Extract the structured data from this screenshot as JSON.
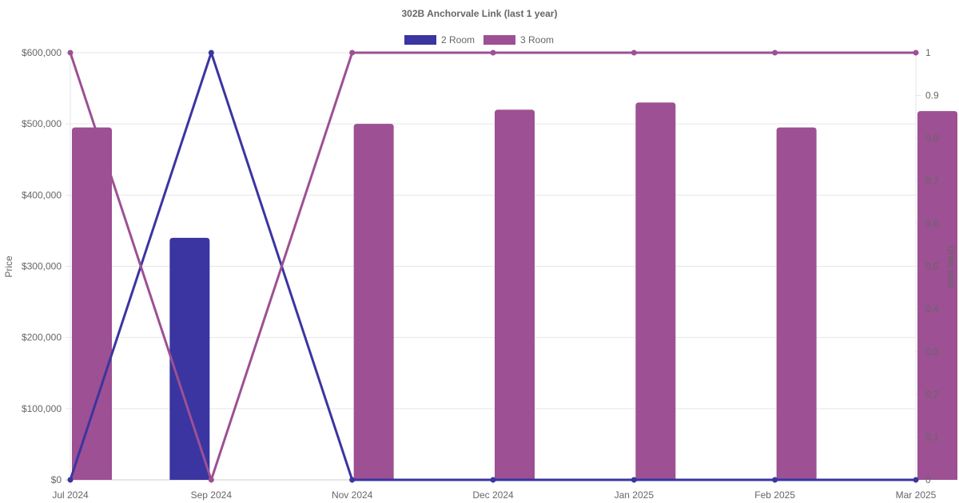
{
  "chart_data": {
    "type": "bar",
    "title": "302B Anchorvale Link (last 1 year)",
    "categories": [
      "Jul 2024",
      "Sep 2024",
      "Nov 2024",
      "Dec 2024",
      "Jan 2025",
      "Feb 2025",
      "Mar 2025"
    ],
    "y_left": {
      "label": "Price",
      "range": [
        0,
        600000
      ],
      "ticks": [
        "$0",
        "$100,000",
        "$200,000",
        "$300,000",
        "$400,000",
        "$500,000",
        "$600,000"
      ]
    },
    "y_right": {
      "label": "Units sold",
      "range": [
        0,
        1
      ],
      "ticks": [
        "0",
        "0.1",
        "0.2",
        "0.3",
        "0.4",
        "0.5",
        "0.6",
        "0.7",
        "0.8",
        "0.9",
        "1"
      ]
    },
    "grid": true,
    "legend_position": "top",
    "series": [
      {
        "name": "2 Room",
        "color": "#3a35a0",
        "prices": [
          null,
          340000,
          null,
          null,
          null,
          null,
          null
        ],
        "units_sold": [
          0,
          1,
          0,
          0,
          0,
          0,
          0
        ]
      },
      {
        "name": "3 Room",
        "color": "#9d5093",
        "prices": [
          495000,
          null,
          500000,
          520000,
          530000,
          495000,
          518000
        ],
        "units_sold": [
          1,
          0,
          1,
          1,
          1,
          1,
          1
        ]
      }
    ]
  }
}
